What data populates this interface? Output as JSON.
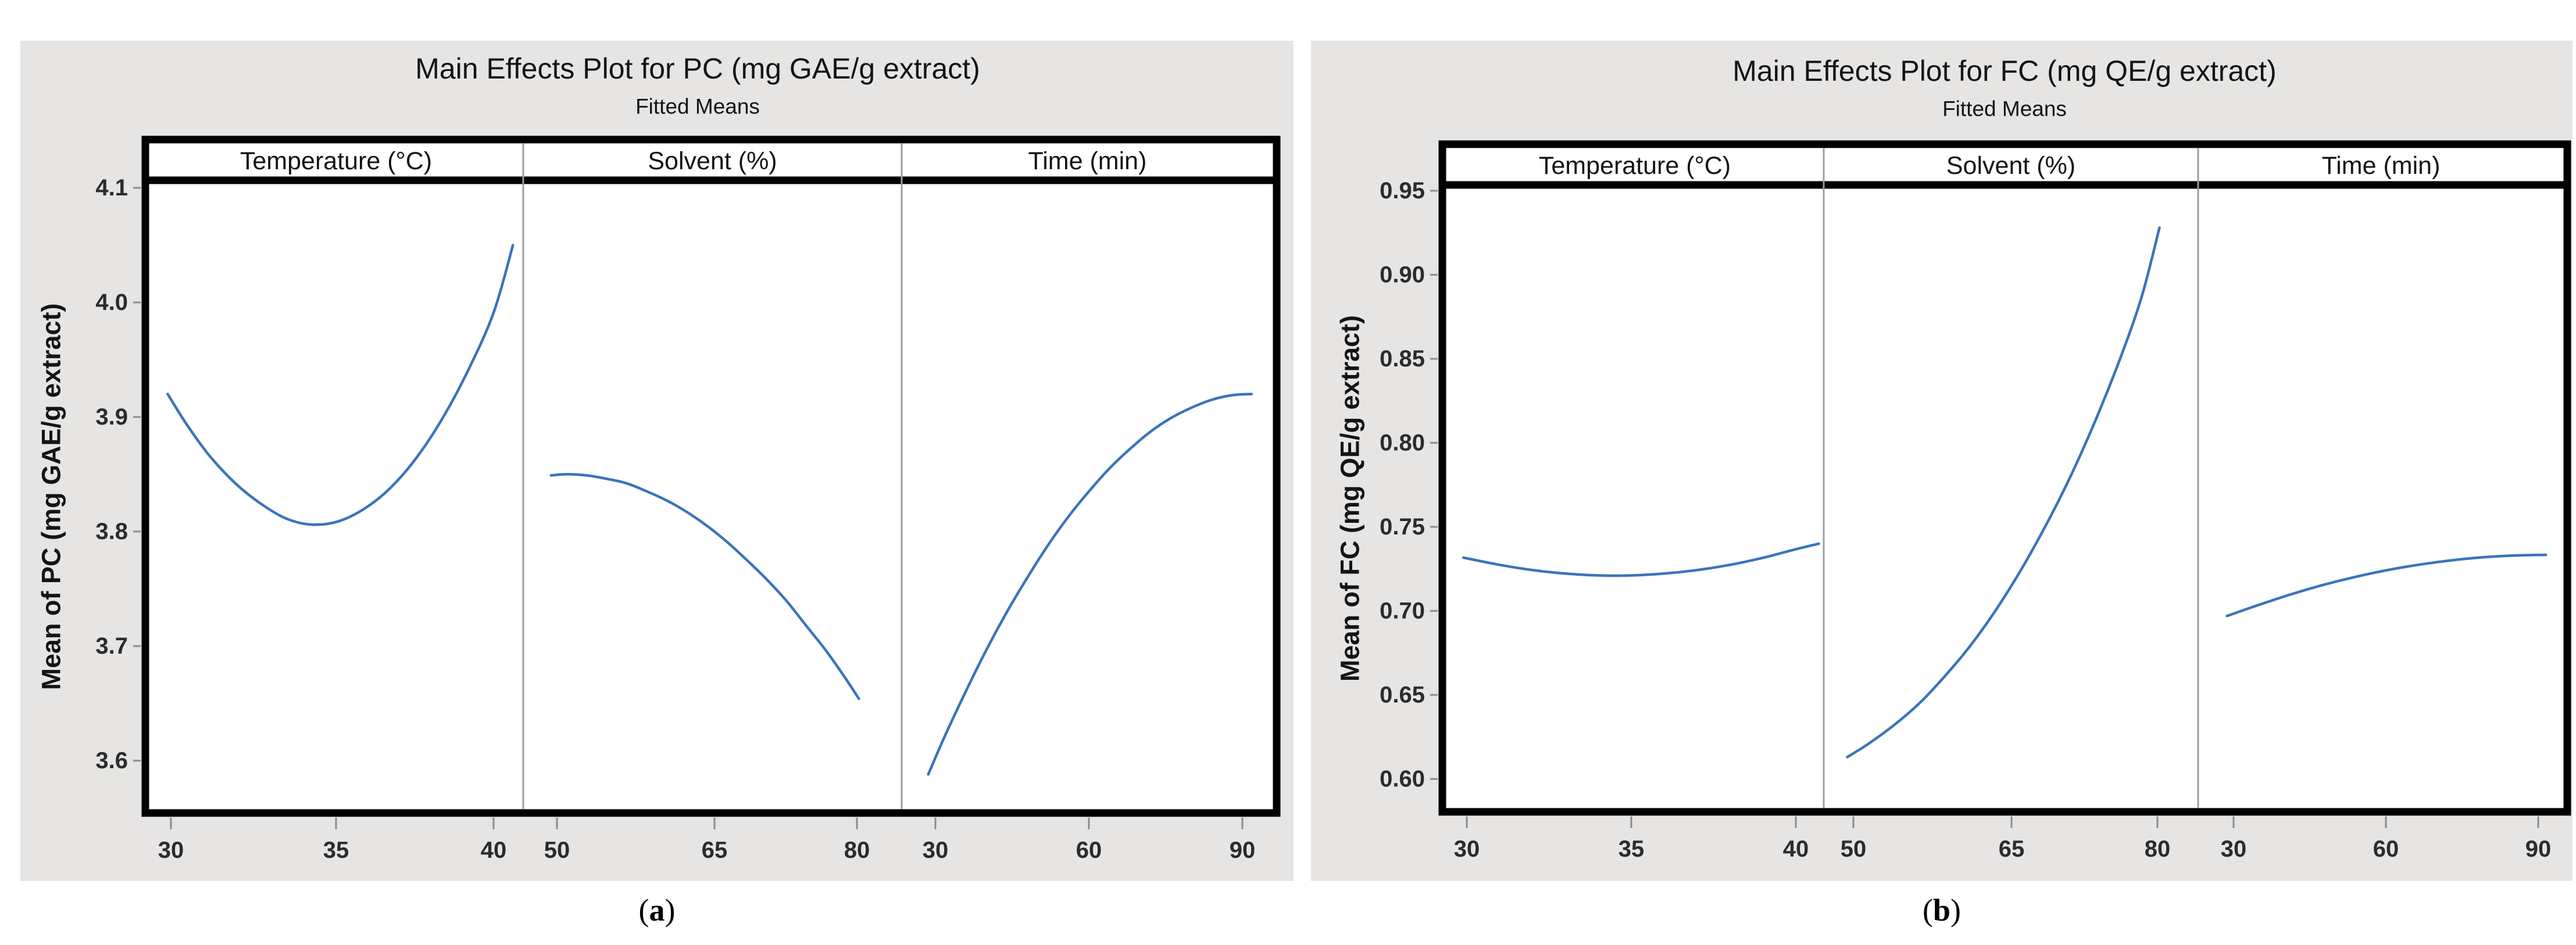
{
  "colors": {
    "card_bg": "#e6e5e4",
    "plot_bg": "#ffffff",
    "frame": "#000000",
    "panel_divider": "#9e9e9e",
    "tick_mark": "#8c8c8c",
    "curve": "#3a74ba",
    "text": "#141414"
  },
  "charts": [
    {
      "type": "line",
      "title": "Main Effects Plot for PC (mg GAE/g extract)",
      "subtitle": "Fitted Means",
      "ylabel": "Mean of PC (mg GAE/g extract)",
      "cap_pre": "(",
      "cap_letter": "a",
      "cap_post": ")",
      "yticks": [
        "4.1",
        "4.0",
        "3.9",
        "3.8",
        "3.7",
        "3.6"
      ],
      "ytick_values": [
        4.1,
        4.0,
        3.9,
        3.8,
        3.7,
        3.6
      ],
      "ylim": [
        3.565,
        4.106
      ],
      "legend": "none",
      "grid": "off",
      "panels": [
        {
          "header": "Temperature (°C)",
          "xticks": [
            30,
            35,
            40
          ],
          "x": [
            29.9,
            30.5,
            31.2,
            32,
            32.8,
            33.6,
            34.4,
            35.2,
            36,
            36.8,
            37.6,
            38.4,
            39.2,
            40,
            40.6
          ],
          "y": [
            3.92,
            3.893,
            3.866,
            3.842,
            3.824,
            3.811,
            3.806,
            3.809,
            3.82,
            3.838,
            3.864,
            3.898,
            3.94,
            3.991,
            4.05
          ]
        },
        {
          "header": "Solvent (%)",
          "xticks": [
            50,
            65,
            80
          ],
          "x": [
            49.4,
            51,
            53,
            55,
            57,
            59,
            61,
            63,
            65,
            67,
            69,
            71,
            73,
            75,
            77,
            79,
            80.2
          ],
          "y": [
            3.849,
            3.85,
            3.849,
            3.846,
            3.842,
            3.835,
            3.827,
            3.817,
            3.805,
            3.791,
            3.775,
            3.758,
            3.739,
            3.717,
            3.695,
            3.67,
            3.654
          ]
        },
        {
          "header": "Time (min)",
          "xticks": [
            30,
            60,
            90
          ],
          "x": [
            28.6,
            32,
            36,
            40,
            44,
            48,
            52,
            56,
            60,
            64,
            68,
            72,
            76,
            80,
            84,
            88,
            91.8
          ],
          "y": [
            3.588,
            3.623,
            3.661,
            3.697,
            3.73,
            3.76,
            3.788,
            3.813,
            3.835,
            3.855,
            3.872,
            3.887,
            3.899,
            3.908,
            3.915,
            3.919,
            3.92
          ]
        }
      ]
    },
    {
      "type": "line",
      "title": "Main Effects Plot for FC (mg QE/g extract)",
      "subtitle": "Fitted Means",
      "ylabel": "Mean of FC (mg QE/g extract)",
      "cap_pre": "(",
      "cap_letter": "b",
      "cap_post": ")",
      "yticks": [
        "0.95",
        "0.90",
        "0.85",
        "0.80",
        "0.75",
        "0.70",
        "0.65",
        "0.60"
      ],
      "ytick_values": [
        0.95,
        0.9,
        0.85,
        0.8,
        0.75,
        0.7,
        0.65,
        0.6
      ],
      "ylim": [
        0.586,
        0.956
      ],
      "legend": "none",
      "grid": "off",
      "panels": [
        {
          "header": "Temperature (°C)",
          "xticks": [
            30,
            35,
            40
          ],
          "x": [
            29.9,
            31,
            32,
            33,
            34,
            35,
            36,
            37,
            38,
            39,
            40,
            40.7
          ],
          "y": [
            0.7317,
            0.7274,
            0.7243,
            0.7222,
            0.7211,
            0.7211,
            0.7222,
            0.7243,
            0.7274,
            0.7316,
            0.7367,
            0.74
          ]
        },
        {
          "header": "Solvent (%)",
          "xticks": [
            50,
            65,
            80
          ],
          "x": [
            49.4,
            51.5,
            54,
            56.5,
            59,
            61.5,
            64,
            66.5,
            69,
            71.5,
            74,
            76.5,
            78.5,
            80.2
          ],
          "y": [
            0.613,
            0.621,
            0.632,
            0.645,
            0.661,
            0.679,
            0.7,
            0.724,
            0.751,
            0.781,
            0.815,
            0.853,
            0.888,
            0.928
          ]
        },
        {
          "header": "Time (min)",
          "xticks": [
            30,
            60,
            90
          ],
          "x": [
            28.7,
            34,
            40,
            46,
            52,
            58,
            64,
            70,
            76,
            82,
            88,
            91.5
          ],
          "y": [
            0.697,
            0.7026,
            0.7086,
            0.7141,
            0.7188,
            0.7229,
            0.7263,
            0.729,
            0.7311,
            0.7325,
            0.7332,
            0.7333
          ]
        }
      ]
    }
  ]
}
